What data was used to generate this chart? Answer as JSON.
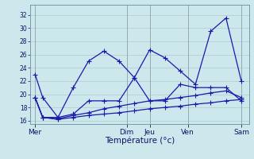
{
  "xlabel": "Température (°c)",
  "bg_color": "#cce8ec",
  "grid_color": "#aacccc",
  "line_color": "#1a1aaa",
  "ylim": [
    15.5,
    33.5
  ],
  "yticks": [
    16,
    18,
    20,
    22,
    24,
    26,
    28,
    30,
    32
  ],
  "xtick_labels": [
    "Mer",
    "Dim",
    "Jeu",
    "Ven",
    "Sam"
  ],
  "xtick_positions": [
    0,
    6,
    7.5,
    10,
    13.5
  ],
  "xlim": [
    -0.3,
    14.0
  ],
  "series": [
    {
      "x": [
        0,
        0.5,
        1.5,
        2.5,
        3.5,
        4.5,
        5.5,
        6.5,
        7.5,
        8.5,
        9.5,
        10.5,
        11.5,
        12.5,
        13.5
      ],
      "y": [
        23,
        19.5,
        16.5,
        21.0,
        25.0,
        26.5,
        25.0,
        22.5,
        26.7,
        25.5,
        23.5,
        21.5,
        29.5,
        31.5,
        22.0
      ]
    },
    {
      "x": [
        0,
        0.5,
        1.5,
        2.5,
        3.5,
        4.5,
        5.5,
        6.5,
        7.5,
        8.5,
        9.5,
        10.5,
        11.5,
        12.5,
        13.5
      ],
      "y": [
        19.5,
        16.5,
        16.5,
        17.0,
        19.0,
        19.0,
        19.0,
        22.5,
        19.0,
        19.0,
        21.5,
        21.0,
        21.0,
        21.0,
        19.0
      ]
    },
    {
      "x": [
        0,
        0.5,
        1.5,
        2.5,
        3.5,
        4.5,
        5.5,
        6.5,
        7.5,
        8.5,
        9.5,
        10.5,
        11.5,
        12.5,
        13.5
      ],
      "y": [
        19.5,
        16.5,
        16.3,
        16.8,
        17.2,
        17.8,
        18.2,
        18.6,
        19.0,
        19.2,
        19.5,
        19.8,
        20.2,
        20.5,
        19.5
      ]
    },
    {
      "x": [
        0,
        0.5,
        1.5,
        2.5,
        3.5,
        4.5,
        5.5,
        6.5,
        7.5,
        8.5,
        9.5,
        10.5,
        11.5,
        12.5,
        13.5
      ],
      "y": [
        19.5,
        16.5,
        16.2,
        16.5,
        16.8,
        17.0,
        17.2,
        17.5,
        17.8,
        18.0,
        18.2,
        18.5,
        18.7,
        19.0,
        19.2
      ]
    }
  ]
}
